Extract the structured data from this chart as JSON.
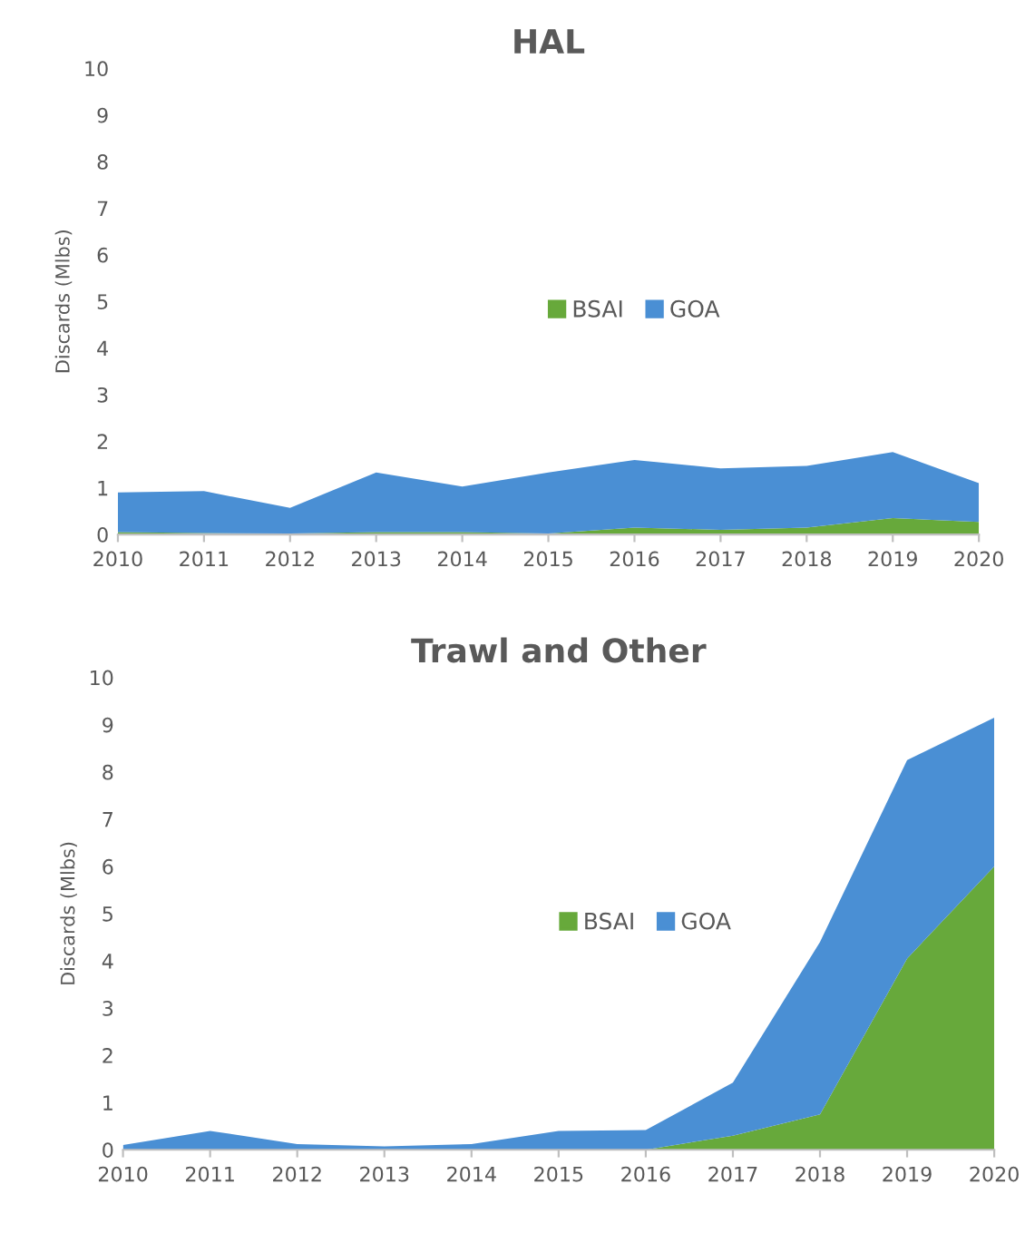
{
  "chart_data": [
    {
      "type": "area",
      "stacked": true,
      "title": "HAL",
      "ylabel": "Discards (Mlbs)",
      "categories": [
        "2010",
        "2011",
        "2012",
        "2013",
        "2014",
        "2015",
        "2016",
        "2017",
        "2018",
        "2019",
        "2020"
      ],
      "series": [
        {
          "name": "BSAI",
          "color": "#67a93b",
          "values": [
            0.05,
            0.03,
            0.02,
            0.05,
            0.05,
            0.02,
            0.15,
            0.1,
            0.15,
            0.35,
            0.27
          ]
        },
        {
          "name": "GOA",
          "color": "#4a8fd4",
          "values": [
            0.85,
            0.9,
            0.55,
            1.28,
            0.98,
            1.31,
            1.45,
            1.32,
            1.32,
            1.42,
            0.83
          ]
        }
      ],
      "ylim": [
        0,
        10
      ],
      "yticks": [
        0,
        1,
        2,
        3,
        4,
        5,
        6,
        7,
        8,
        9,
        10
      ],
      "grid": false,
      "legend": "center"
    },
    {
      "type": "area",
      "stacked": true,
      "title": "Trawl and Other",
      "ylabel": "Discards (Mlbs)",
      "categories": [
        "2010",
        "2011",
        "2012",
        "2013",
        "2014",
        "2015",
        "2016",
        "2017",
        "2018",
        "2019",
        "2020"
      ],
      "series": [
        {
          "name": "BSAI",
          "color": "#67a93b",
          "values": [
            0,
            0,
            0,
            0,
            0,
            0,
            0,
            0.3,
            0.75,
            4.05,
            6.0
          ]
        },
        {
          "name": "GOA",
          "color": "#4a8fd4",
          "values": [
            0.1,
            0.4,
            0.12,
            0.07,
            0.12,
            0.4,
            0.42,
            1.12,
            3.65,
            4.2,
            3.15
          ]
        }
      ],
      "ylim": [
        0,
        10
      ],
      "yticks": [
        0,
        1,
        2,
        3,
        4,
        5,
        6,
        7,
        8,
        9,
        10
      ],
      "grid": false,
      "legend": "center"
    }
  ]
}
